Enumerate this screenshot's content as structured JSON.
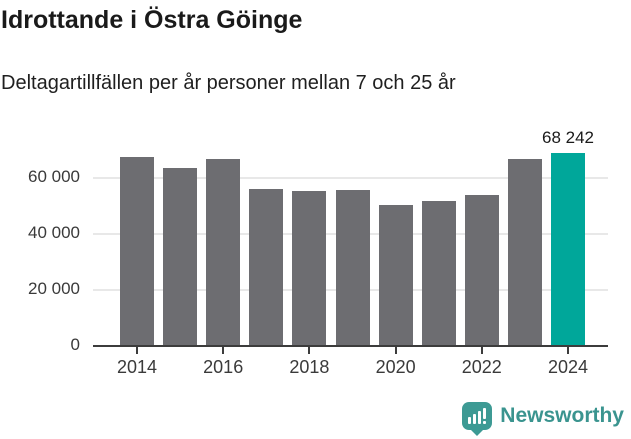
{
  "header": {
    "title": "Idrottande i Östra Göinge",
    "subtitle": "Deltagartillfällen per år personer mellan 7 och 25 år"
  },
  "chart_data": {
    "type": "bar",
    "title": "Idrottande i Östra Göinge",
    "subtitle": "Deltagartillfällen per år personer mellan 7 och 25 år",
    "categories": [
      2014,
      2015,
      2016,
      2017,
      2018,
      2019,
      2020,
      2021,
      2022,
      2023,
      2024
    ],
    "values": [
      66800,
      63000,
      66400,
      55500,
      54900,
      55300,
      49800,
      51300,
      53400,
      66300,
      68242
    ],
    "highlight_index": 10,
    "value_label": {
      "index": 10,
      "text": "68 242"
    },
    "xticks": [
      "2014",
      "2016",
      "2018",
      "2020",
      "2022",
      "2024"
    ],
    "yticks": [
      {
        "value": 0,
        "label": "0"
      },
      {
        "value": 20000,
        "label": "20 000"
      },
      {
        "value": 40000,
        "label": "40 000"
      },
      {
        "value": 60000,
        "label": "60 000"
      }
    ],
    "ylim": [
      0,
      72000
    ],
    "grid": "horizontal",
    "legend": "none",
    "colors": {
      "bar": "#6d6d71",
      "highlight": "#00a79a",
      "axis": "#3c3c3c",
      "gridline": "#e8e8e8",
      "tick_label": "#3a3a3a",
      "value_label": "#1a1a1a"
    }
  },
  "footer": {
    "brand": "Newsworthy",
    "brand_color": "#3a948f"
  }
}
